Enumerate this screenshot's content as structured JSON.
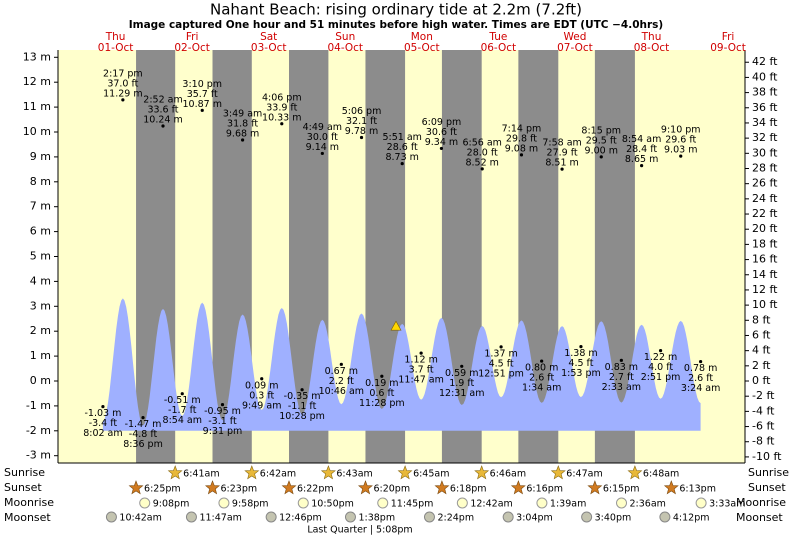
{
  "chart_data": {
    "type": "tide",
    "title": "Nahant Beach: rising  ordinary tide at 2.2m (7.2ft)",
    "subtitle": "Image captured One hour and 51 minutes before high water. Times are EDT (UTC −4.0hrs)",
    "current_height": 2.2,
    "ylim": [
      -3,
      13
    ],
    "yticks": [
      {
        "value": 13,
        "label": "13 m"
      },
      {
        "value": 12,
        "label": "12 m"
      },
      {
        "value": 11,
        "label": "11 m"
      },
      {
        "value": 10,
        "label": "10 m"
      },
      {
        "value": 9,
        "label": "9 m"
      },
      {
        "value": 8,
        "label": "8 m"
      },
      {
        "value": 7,
        "label": "7 m"
      },
      {
        "value": 6,
        "label": "6 m"
      },
      {
        "value": 5,
        "label": "5 m"
      },
      {
        "value": 4,
        "label": "4 m"
      },
      {
        "value": 3,
        "label": "3 m"
      },
      {
        "value": 2,
        "label": "2 m"
      },
      {
        "value": 1,
        "label": "1 m"
      },
      {
        "value": 0,
        "label": "0 m"
      },
      {
        "value": -1,
        "label": "-1 m"
      },
      {
        "value": -2,
        "label": "-2 m"
      },
      {
        "value": -3,
        "label": "-3 m"
      }
    ],
    "y2lim": [
      -9.84,
      42.65
    ],
    "y2ticks": [
      {
        "value": 42,
        "label": "42 ft"
      },
      {
        "value": 40,
        "label": "40 ft"
      },
      {
        "value": 38,
        "label": "38 ft"
      },
      {
        "value": 36,
        "label": "36 ft"
      },
      {
        "value": 34,
        "label": "34 ft"
      },
      {
        "value": 32,
        "label": "32 ft"
      },
      {
        "value": 30,
        "label": "30 ft"
      },
      {
        "value": 28,
        "label": "28 ft"
      },
      {
        "value": 26,
        "label": "26 ft"
      },
      {
        "value": 24,
        "label": "24 ft"
      },
      {
        "value": 22,
        "label": "22 ft"
      },
      {
        "value": 20,
        "label": "20 ft"
      },
      {
        "value": 18,
        "label": "18 ft"
      },
      {
        "value": 16,
        "label": "16 ft"
      },
      {
        "value": 14,
        "label": "14 ft"
      },
      {
        "value": 12,
        "label": "12 ft"
      },
      {
        "value": 10,
        "label": "10 ft"
      },
      {
        "value": 8,
        "label": "8 ft"
      },
      {
        "value": 6,
        "label": "6 ft"
      },
      {
        "value": 4,
        "label": "4 ft"
      },
      {
        "value": 2,
        "label": "2 ft"
      },
      {
        "value": 0,
        "label": "0 ft"
      },
      {
        "value": -2,
        "label": "-2 ft"
      },
      {
        "value": -4,
        "label": "-4 ft"
      },
      {
        "value": -6,
        "label": "-6 ft"
      },
      {
        "value": -8,
        "label": "-8 ft"
      },
      {
        "value": -10,
        "label": "-10 ft"
      }
    ],
    "days": [
      {
        "weekday": "Thu",
        "date": "01-Oct"
      },
      {
        "weekday": "Fri",
        "date": "02-Oct"
      },
      {
        "weekday": "Sat",
        "date": "03-Oct"
      },
      {
        "weekday": "Sun",
        "date": "04-Oct"
      },
      {
        "weekday": "Mon",
        "date": "05-Oct"
      },
      {
        "weekday": "Tue",
        "date": "06-Oct"
      },
      {
        "weekday": "Wed",
        "date": "07-Oct"
      },
      {
        "weekday": "Thu",
        "date": "08-Oct"
      },
      {
        "weekday": "Fri",
        "date": "09-Oct"
      }
    ],
    "tides": {
      "times": [
        "8:02 am",
        "2:17 pm",
        "8:36 pm",
        "2:52 am",
        "8:54 am",
        "3:10 pm",
        "9:31 pm",
        "3:49 am",
        "9:49 am",
        "4:06 pm",
        "10:28 pm",
        "4:49 am",
        "10:46 am",
        "5:06 pm",
        "11:28 pm",
        "5:51 am",
        "11:47 am",
        "6:09 pm",
        "12:31 am",
        "6:56 am",
        "12:51 pm",
        "7:14 pm",
        "1:34 am",
        "7:58 am",
        "1:53 pm",
        "8:15 pm",
        "2:33 am",
        "8:54 am",
        "2:51 pm",
        "9:10 pm",
        "3:24 am"
      ],
      "values": [
        -1.03,
        11.29,
        -1.47,
        10.24,
        -0.51,
        10.87,
        -0.95,
        9.68,
        0.09,
        10.33,
        -0.35,
        9.14,
        0.67,
        9.78,
        0.19,
        8.73,
        1.12,
        9.34,
        0.59,
        8.52,
        1.37,
        9.08,
        0.8,
        8.51,
        1.38,
        9.0,
        0.83,
        8.65,
        1.22,
        9.03,
        0.78
      ],
      "value_labels": [
        "-1.03 m",
        "11.29 m",
        "-1.47 m",
        "10.24 m",
        "-0.51 m",
        "10.87 m",
        "-0.95 m",
        "9.68 m",
        "0.09 m",
        "10.33 m",
        "-0.35 m",
        "9.14 m",
        "0.67 m",
        "9.78 m",
        "0.19 m",
        "8.73 m",
        "1.12 m",
        "9.34 m",
        "0.59 m",
        "8.52 m",
        "1.37 m",
        "9.08 m",
        "0.80 m",
        "8.51 m",
        "1.38 m",
        "9.00 m",
        "0.83 m",
        "8.65 m",
        "1.22 m",
        "9.03 m",
        "0.78 m"
      ],
      "ft_labels": [
        "-3.4 ft",
        "37.0 ft",
        "-4.8 ft",
        "33.6 ft",
        "-1.7 ft",
        "35.7 ft",
        "-3.1 ft",
        "31.8 ft",
        "0.3 ft",
        "33.9 ft",
        "-1.1 ft",
        "30.0 ft",
        "2.2 ft",
        "32.1 ft",
        "0.6 ft",
        "28.6 ft",
        "3.7 ft",
        "30.6 ft",
        "1.9 ft",
        "28.0 ft",
        "4.5 ft",
        "29.8 ft",
        "2.6 ft",
        "27.9 ft",
        "4.5 ft",
        "29.5 ft",
        "2.7 ft",
        "28.4 ft",
        "4.0 ft",
        "29.6 ft",
        "2.6 ft"
      ]
    },
    "sunrise": {
      "label": "Sunrise",
      "times": [
        "6:41am",
        "6:42am",
        "6:43am",
        "6:45am",
        "6:46am",
        "6:47am",
        "6:48am"
      ]
    },
    "sunset": {
      "label": "Sunset",
      "times": [
        "6:25pm",
        "6:23pm",
        "6:22pm",
        "6:20pm",
        "6:18pm",
        "6:16pm",
        "6:15pm",
        "6:13pm"
      ]
    },
    "moonrise": {
      "label": "Moonrise",
      "times": [
        "9:08pm",
        "9:58pm",
        "10:50pm",
        "11:45pm",
        "12:42am",
        "1:39am",
        "2:36am",
        "3:33am"
      ]
    },
    "moonset": {
      "label": "Moonset",
      "times": [
        "10:42am",
        "11:47am",
        "12:46pm",
        "1:38pm",
        "2:24pm",
        "3:04pm",
        "3:40pm",
        "4:12pm"
      ]
    },
    "moon_phase": "Last Quarter | 5:08pm"
  }
}
